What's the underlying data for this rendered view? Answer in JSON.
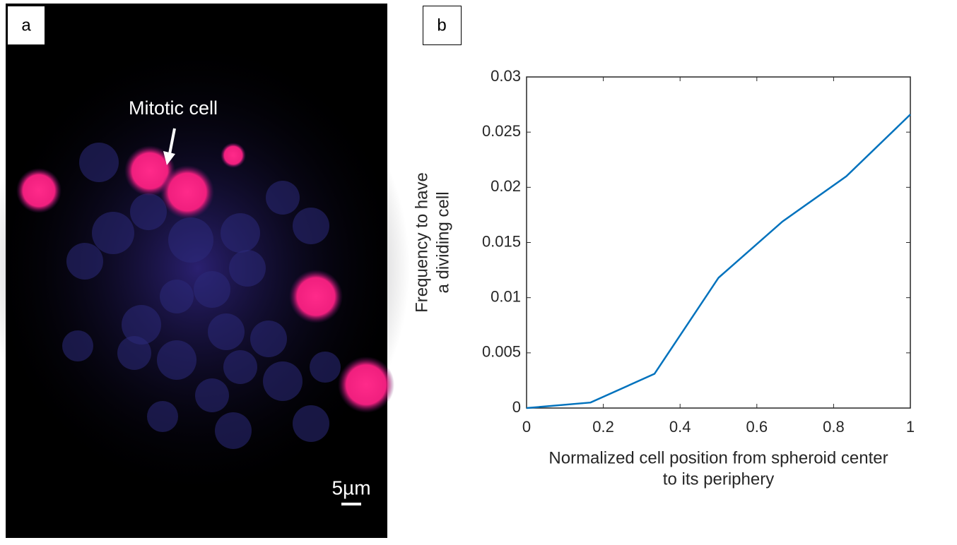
{
  "image": {
    "label": "a",
    "annotation": "Mitotic cell",
    "scale_bar": "5µm"
  },
  "chart_label": "b",
  "chart_data": {
    "type": "line",
    "xlabel": [
      "Normalized cell position from spheroid center",
      "to its periphery"
    ],
    "ylabel": [
      "Frequency to have",
      "a dividing cell"
    ],
    "x": [
      0,
      0.1667,
      0.3333,
      0.5,
      0.6667,
      0.8333,
      1
    ],
    "values": [
      0,
      0.0005,
      0.0031,
      0.0118,
      0.0169,
      0.021,
      0.0266
    ],
    "color": "#0072bd",
    "xlim": [
      0,
      1
    ],
    "xticks": [
      0,
      0.2,
      0.4,
      0.6,
      0.8,
      1
    ],
    "ylim": [
      0,
      0.03
    ],
    "yticks": [
      0,
      0.005,
      0.01,
      0.015,
      0.02,
      0.025,
      0.03
    ],
    "grid": false
  }
}
